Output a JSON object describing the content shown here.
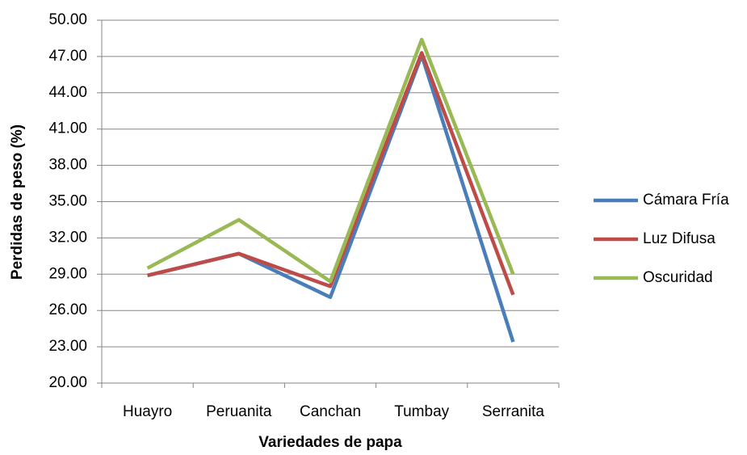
{
  "chart_data": {
    "type": "line",
    "x_label": "Variedades de papa",
    "y_label": "Perdidas de peso (%)",
    "categories": [
      "Huayro",
      "Peruanita",
      "Canchan",
      "Tumbay",
      "Serranita"
    ],
    "series": [
      {
        "name": "Cámara Fría",
        "color": "#4a7ebb",
        "values": [
          28.9,
          30.7,
          27.1,
          47.1,
          23.4
        ]
      },
      {
        "name": "Luz Difusa",
        "color": "#be4b48",
        "values": [
          28.9,
          30.7,
          28.0,
          47.3,
          27.3
        ]
      },
      {
        "name": "Oscuridad",
        "color": "#98b954",
        "values": [
          29.5,
          33.5,
          28.4,
          48.4,
          29.0
        ]
      }
    ],
    "ylim": [
      20,
      50
    ],
    "yticks": [
      {
        "value": 20,
        "label": "20.00"
      },
      {
        "value": 23,
        "label": "23.00"
      },
      {
        "value": 26,
        "label": "26.00"
      },
      {
        "value": 29,
        "label": "29.00"
      },
      {
        "value": 32,
        "label": "32.00"
      },
      {
        "value": 35,
        "label": "35.00"
      },
      {
        "value": 38,
        "label": "38.00"
      },
      {
        "value": 41,
        "label": "41.00"
      },
      {
        "value": 44,
        "label": "44.00"
      },
      {
        "value": 47,
        "label": "47.00"
      },
      {
        "value": 50,
        "label": "50.00"
      }
    ],
    "grid": true,
    "legend": "right"
  }
}
